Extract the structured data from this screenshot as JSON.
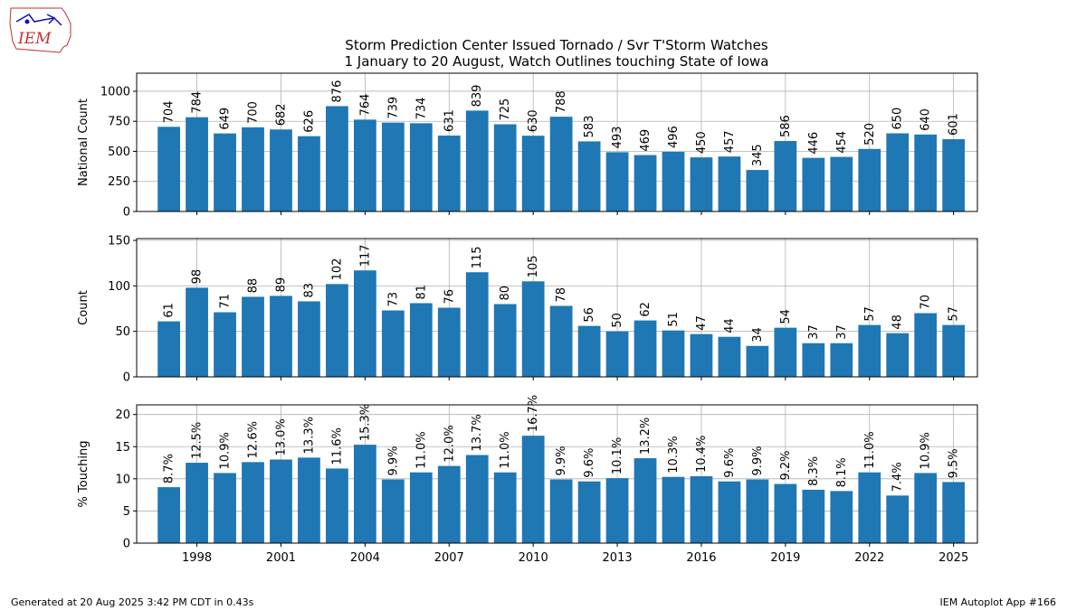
{
  "logo": {
    "text": "IEM"
  },
  "chart_data": {
    "type": "bar",
    "title": [
      "Storm Prediction Center Issued Tornado / Svr T'Storm Watches",
      "1 January to 20 August, Watch Outlines touching State of Iowa"
    ],
    "years": [
      1997,
      1998,
      1999,
      2000,
      2001,
      2002,
      2003,
      2004,
      2005,
      2006,
      2007,
      2008,
      2009,
      2010,
      2011,
      2012,
      2013,
      2014,
      2015,
      2016,
      2017,
      2018,
      2019,
      2020,
      2021,
      2022,
      2023,
      2024,
      2025
    ],
    "xticks": [
      1998,
      2001,
      2004,
      2007,
      2010,
      2013,
      2016,
      2019,
      2022,
      2025
    ],
    "panels": [
      {
        "ylabel": "National Count",
        "ylim": [
          0,
          1150
        ],
        "yticks": [
          0,
          250,
          500,
          750,
          1000
        ],
        "values": [
          704,
          784,
          649,
          700,
          682,
          626,
          876,
          764,
          739,
          734,
          631,
          839,
          725,
          630,
          788,
          583,
          493,
          469,
          496,
          450,
          457,
          345,
          586,
          446,
          454,
          520,
          650,
          640,
          601
        ],
        "labels": [
          "704",
          "784",
          "649",
          "700",
          "682",
          "626",
          "876",
          "764",
          "739",
          "734",
          "631",
          "839",
          "725",
          "630",
          "788",
          "583",
          "493",
          "469",
          "496",
          "450",
          "457",
          "345",
          "586",
          "446",
          "454",
          "520",
          "650",
          "640",
          "601"
        ]
      },
      {
        "ylabel": "Count",
        "ylim": [
          0,
          152
        ],
        "yticks": [
          0,
          50,
          100,
          150
        ],
        "values": [
          61,
          98,
          71,
          88,
          89,
          83,
          102,
          117,
          73,
          81,
          76,
          115,
          80,
          105,
          78,
          56,
          50,
          62,
          51,
          47,
          44,
          34,
          54,
          37,
          37,
          57,
          48,
          70,
          57
        ],
        "labels": [
          "61",
          "98",
          "71",
          "88",
          "89",
          "83",
          "102",
          "117",
          "73",
          "81",
          "76",
          "115",
          "80",
          "105",
          "78",
          "56",
          "50",
          "62",
          "51",
          "47",
          "44",
          "34",
          "54",
          "37",
          "37",
          "57",
          "48",
          "70",
          "57"
        ]
      },
      {
        "ylabel": "% Touching",
        "ylim": [
          0,
          21.5
        ],
        "yticks": [
          0,
          5,
          10,
          15,
          20
        ],
        "values": [
          8.7,
          12.5,
          10.9,
          12.6,
          13.0,
          13.3,
          11.6,
          15.3,
          9.9,
          11.0,
          12.0,
          13.7,
          11.0,
          16.7,
          9.9,
          9.6,
          10.1,
          13.2,
          10.3,
          10.4,
          9.6,
          9.9,
          9.2,
          8.3,
          8.1,
          11.0,
          7.4,
          10.9,
          9.5
        ],
        "labels": [
          "8.7%",
          "12.5%",
          "10.9%",
          "12.6%",
          "13.0%",
          "13.3%",
          "11.6%",
          "15.3%",
          "9.9%",
          "11.0%",
          "12.0%",
          "13.7%",
          "11.0%",
          "16.7%",
          "9.9%",
          "9.6%",
          "10.1%",
          "13.2%",
          "10.3%",
          "10.4%",
          "9.6%",
          "9.9%",
          "9.2%",
          "8.3%",
          "8.1%",
          "11.0%",
          "7.4%",
          "10.9%",
          "9.5%"
        ]
      }
    ],
    "bar_color": "#1f77b4",
    "grid": true
  },
  "footer": {
    "left": "Generated at 20 Aug 2025 3:42 PM CDT in 0.43s",
    "right": "IEM Autoplot App #166"
  }
}
